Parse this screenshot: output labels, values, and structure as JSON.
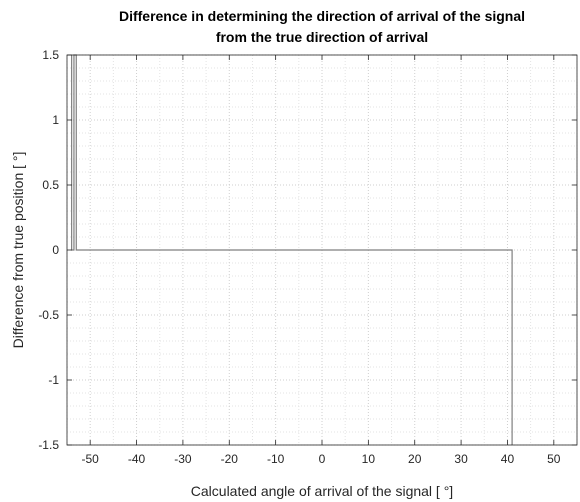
{
  "chart_data": {
    "type": "line",
    "title_line1": "Difference in determining the direction of arrival of the signal",
    "title_line2": "from the true direction of arrival",
    "xlabel": "Calculated angle of arrival of the signal [ °]",
    "ylabel": "Difference from true position [ °]",
    "xlim": [
      -55,
      55
    ],
    "ylim": [
      -1.5,
      1.5
    ],
    "xticks": [
      -50,
      -40,
      -30,
      -20,
      -10,
      0,
      10,
      20,
      30,
      40,
      50
    ],
    "xtick_labels": [
      "-50",
      "-40",
      "-30",
      "-20",
      "-10",
      "0",
      "10",
      "20",
      "30",
      "40",
      "50"
    ],
    "yticks": [
      1.5,
      1,
      0.5,
      0,
      -0.5,
      -1,
      -1.5
    ],
    "ytick_labels": [
      "1.5",
      "1",
      "0.5",
      "0",
      "-0.5",
      "-1",
      "-1.5"
    ],
    "grid": "major-and-minor-dotted",
    "legend": "none",
    "line_color": "#7f7f7f",
    "series": [
      {
        "x": [
          -54,
          -54,
          -53.5,
          -53.5,
          -53,
          -53,
          41,
          41
        ],
        "y": [
          1.5,
          0,
          0,
          1.5,
          1.5,
          0,
          0,
          -1.5
        ]
      }
    ]
  }
}
